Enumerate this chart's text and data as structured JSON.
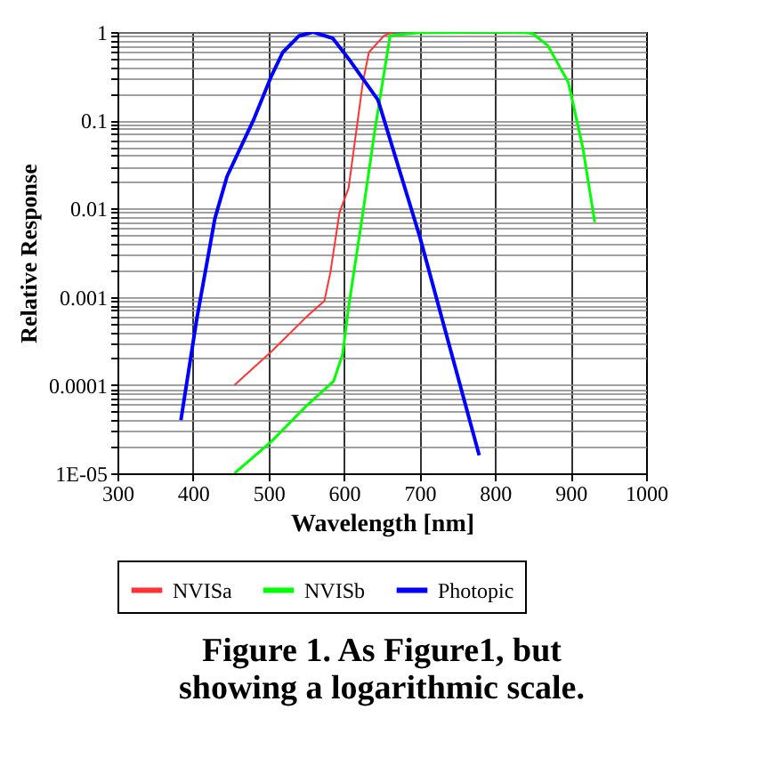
{
  "chart_data": {
    "type": "line",
    "title": "Figure 1.  As Figure1, but showing a logarithmic scale.",
    "xlabel": "Wavelength [nm]",
    "ylabel": "Relative Response",
    "xlim": [
      300,
      1000
    ],
    "xticks": [
      300,
      400,
      500,
      600,
      700,
      800,
      900,
      1000
    ],
    "ylim": [
      1e-05,
      1
    ],
    "log": "y",
    "grid": true,
    "legend": "bottom",
    "line_style": "solid",
    "marker": "none",
    "yticks": [
      {
        "value": 1e-05,
        "label": "1E-05"
      },
      {
        "value": 2e-05,
        "label": null
      },
      {
        "value": 3e-05,
        "label": null
      },
      {
        "value": 4e-05,
        "label": null
      },
      {
        "value": 5e-05,
        "label": null
      },
      {
        "value": 6e-05,
        "label": null
      },
      {
        "value": 7e-05,
        "label": null
      },
      {
        "value": 8e-05,
        "label": null
      },
      {
        "value": 9e-05,
        "label": null
      },
      {
        "value": 0.0001,
        "label": "0.0001"
      },
      {
        "value": 0.0002,
        "label": null
      },
      {
        "value": 0.0003,
        "label": null
      },
      {
        "value": 0.0004,
        "label": null
      },
      {
        "value": 0.0005,
        "label": null
      },
      {
        "value": 0.0006,
        "label": null
      },
      {
        "value": 0.0007,
        "label": null
      },
      {
        "value": 0.0008,
        "label": null
      },
      {
        "value": 0.0009,
        "label": null
      },
      {
        "value": 0.001,
        "label": "0.001"
      },
      {
        "value": 0.002,
        "label": null
      },
      {
        "value": 0.003,
        "label": null
      },
      {
        "value": 0.004,
        "label": null
      },
      {
        "value": 0.005,
        "label": null
      },
      {
        "value": 0.006,
        "label": null
      },
      {
        "value": 0.007,
        "label": null
      },
      {
        "value": 0.008,
        "label": null
      },
      {
        "value": 0.009,
        "label": null
      },
      {
        "value": 0.01,
        "label": "0.01"
      },
      {
        "value": 0.02,
        "label": null
      },
      {
        "value": 0.03,
        "label": null
      },
      {
        "value": 0.04,
        "label": null
      },
      {
        "value": 0.05,
        "label": null
      },
      {
        "value": 0.06,
        "label": null
      },
      {
        "value": 0.07,
        "label": null
      },
      {
        "value": 0.08,
        "label": null
      },
      {
        "value": 0.09,
        "label": null
      },
      {
        "value": 0.1,
        "label": "0.1"
      },
      {
        "value": 0.2,
        "label": null
      },
      {
        "value": 0.3,
        "label": null
      },
      {
        "value": 0.4,
        "label": null
      },
      {
        "value": 0.5,
        "label": null
      },
      {
        "value": 0.6,
        "label": null
      },
      {
        "value": 0.7,
        "label": null
      },
      {
        "value": 0.8,
        "label": null
      },
      {
        "value": 0.9,
        "label": null
      },
      {
        "value": 1,
        "label": "1"
      }
    ],
    "series": [
      {
        "name": "NVISa",
        "color": "#ff3333",
        "x": [
          455,
          504,
          551,
          574,
          582,
          594,
          606,
          625,
          633,
          653,
          665
        ],
        "values": [
          0.0001,
          0.00024,
          0.0006,
          0.0009,
          0.0019,
          0.009,
          0.017,
          0.27,
          0.59,
          0.91,
          1
        ]
      },
      {
        "name": "NVISb",
        "color": "#00ff00",
        "x": [
          455,
          504,
          551,
          586,
          598,
          606,
          625,
          641,
          661,
          700,
          800,
          840,
          850,
          870,
          897,
          916,
          932
        ],
        "values": [
          1e-05,
          2.3e-05,
          5.9e-05,
          0.00011,
          0.00022,
          0.00076,
          0.009,
          0.079,
          0.91,
          0.98,
          1,
          0.98,
          0.96,
          0.7,
          0.27,
          0.05,
          0.007
        ]
      },
      {
        "name": "Photopic",
        "color": "#0000ff",
        "x": [
          384,
          405,
          429,
          445,
          480,
          504,
          519,
          540,
          559,
          585,
          606,
          645,
          700,
          779
        ],
        "values": [
          4e-05,
          0.00056,
          0.0077,
          0.023,
          0.1,
          0.32,
          0.59,
          0.9,
          1,
          0.85,
          0.5,
          0.17,
          0.0049,
          1.6e-05
        ]
      }
    ]
  }
}
